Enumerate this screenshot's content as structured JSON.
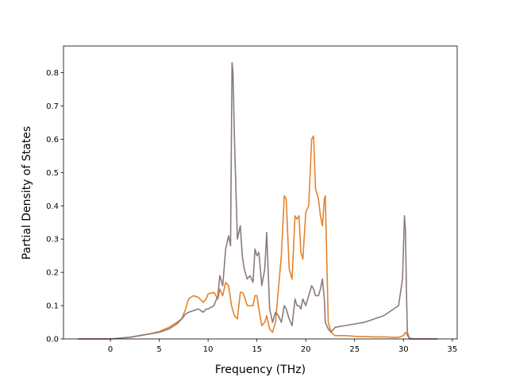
{
  "chart_data": {
    "type": "line",
    "xlabel": "Frequency (THz)",
    "ylabel": "Partial Density of States",
    "xlim": [
      -4.8,
      35.5
    ],
    "ylim": [
      0.0,
      0.88
    ],
    "xticks": [
      0,
      5,
      10,
      15,
      20,
      25,
      30,
      35
    ],
    "yticks": [
      0.0,
      0.1,
      0.2,
      0.3,
      0.4,
      0.5,
      0.6,
      0.7,
      0.8
    ],
    "grid": false,
    "series": [
      {
        "color": "#e6832a",
        "x": [
          -3.3,
          0,
          2,
          4,
          5,
          6,
          6.8,
          7.3,
          7.7,
          8,
          8.5,
          9,
          9.5,
          9.8,
          10,
          10.6,
          11,
          11.2,
          11.5,
          11.8,
          12.1,
          12.4,
          12.7,
          13,
          13.3,
          13.5,
          13.7,
          14,
          14.3,
          14.6,
          14.8,
          15,
          15.2,
          15.5,
          15.8,
          16,
          16.3,
          16.6,
          16.9,
          17.2,
          17.5,
          17.8,
          18,
          18.3,
          18.6,
          18.9,
          19.1,
          19.3,
          19.5,
          19.7,
          20,
          20.3,
          20.6,
          20.8,
          21,
          21.3,
          21.5,
          21.7,
          21.9,
          22,
          22.3,
          22.6,
          23,
          24,
          25,
          26,
          27,
          28,
          29,
          29.5,
          30,
          30.2,
          30.4,
          30.6,
          31,
          33.5
        ],
        "y": [
          0.0,
          0.0,
          0.005,
          0.015,
          0.022,
          0.035,
          0.05,
          0.06,
          0.09,
          0.12,
          0.13,
          0.125,
          0.11,
          0.12,
          0.135,
          0.14,
          0.12,
          0.15,
          0.13,
          0.17,
          0.16,
          0.1,
          0.07,
          0.06,
          0.14,
          0.14,
          0.13,
          0.1,
          0.1,
          0.1,
          0.13,
          0.13,
          0.09,
          0.04,
          0.05,
          0.07,
          0.03,
          0.02,
          0.05,
          0.15,
          0.25,
          0.43,
          0.42,
          0.21,
          0.18,
          0.37,
          0.36,
          0.37,
          0.26,
          0.24,
          0.38,
          0.4,
          0.6,
          0.61,
          0.45,
          0.42,
          0.37,
          0.34,
          0.42,
          0.43,
          0.05,
          0.02,
          0.01,
          0.01,
          0.008,
          0.007,
          0.006,
          0.006,
          0.005,
          0.005,
          0.01,
          0.02,
          0.01,
          0.003,
          0.0,
          0.0
        ]
      },
      {
        "color": "#8b7a7f",
        "x": [
          -3.3,
          0,
          2,
          4,
          5,
          6,
          6.8,
          7.3,
          7.7,
          8,
          8.5,
          9,
          9.5,
          9.8,
          10,
          10.6,
          11,
          11.2,
          11.5,
          11.8,
          12.1,
          12.3,
          12.45,
          12.55,
          12.7,
          13,
          13.3,
          13.5,
          13.7,
          14,
          14.3,
          14.6,
          14.8,
          15,
          15.2,
          15.5,
          15.8,
          16,
          16.3,
          16.6,
          16.9,
          17.2,
          17.5,
          17.8,
          18,
          18.3,
          18.6,
          18.9,
          19.1,
          19.3,
          19.5,
          19.7,
          20,
          20.3,
          20.6,
          20.8,
          21,
          21.3,
          21.5,
          21.7,
          21.9,
          22,
          22.3,
          22.6,
          23,
          24,
          25,
          26,
          27,
          28,
          29,
          29.5,
          29.9,
          30.1,
          30.2,
          30.3,
          30.4,
          30.6,
          31,
          33.5
        ],
        "y": [
          0.0,
          0.0,
          0.005,
          0.015,
          0.02,
          0.03,
          0.045,
          0.06,
          0.075,
          0.08,
          0.085,
          0.09,
          0.08,
          0.09,
          0.09,
          0.1,
          0.13,
          0.19,
          0.16,
          0.27,
          0.31,
          0.28,
          0.83,
          0.8,
          0.6,
          0.3,
          0.34,
          0.25,
          0.21,
          0.18,
          0.19,
          0.17,
          0.27,
          0.25,
          0.26,
          0.16,
          0.21,
          0.32,
          0.09,
          0.05,
          0.08,
          0.07,
          0.05,
          0.1,
          0.09,
          0.06,
          0.04,
          0.12,
          0.1,
          0.1,
          0.09,
          0.12,
          0.1,
          0.13,
          0.16,
          0.15,
          0.13,
          0.13,
          0.15,
          0.18,
          0.12,
          0.05,
          0.03,
          0.02,
          0.035,
          0.04,
          0.045,
          0.05,
          0.06,
          0.07,
          0.09,
          0.1,
          0.18,
          0.37,
          0.33,
          0.15,
          0.02,
          0.0,
          0.0,
          0.0
        ]
      }
    ]
  }
}
